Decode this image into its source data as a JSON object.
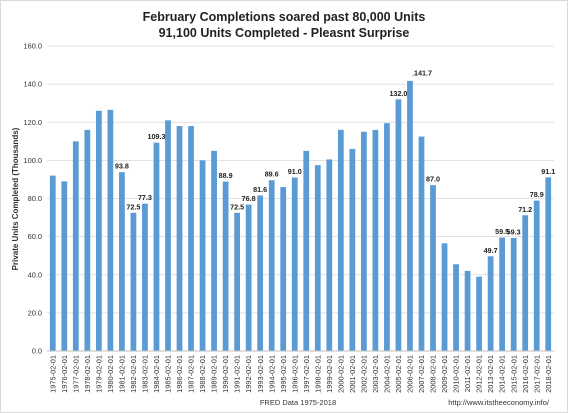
{
  "chart_data": {
    "type": "bar",
    "title_line1": "February Completions soared past 80,000 Units",
    "title_line2": "91,100 Units Completed - Pleasnt Surprise",
    "ylabel": "Private Units Completed (Thousands)",
    "xlabel": "FRED Data 1975-2018",
    "source_note": "http://www.itstheeconomy.info/",
    "ylim": [
      0,
      160
    ],
    "yticks": [
      "0.0",
      "20.0",
      "40.0",
      "60.0",
      "80.0",
      "100.0",
      "120.0",
      "140.0",
      "160.0"
    ],
    "grid": true,
    "bar_color": "#5b9bd5",
    "categories": [
      "1975-02-01",
      "1976-02-01",
      "1977-02-01",
      "1978-02-01",
      "1979-02-01",
      "1980-02-01",
      "1981-02-01",
      "1982-02-01",
      "1983-02-01",
      "1984-02-01",
      "1985-02-01",
      "1986-02-01",
      "1987-02-01",
      "1988-02-01",
      "1989-02-01",
      "1990-02-01",
      "1991-02-01",
      "1992-02-01",
      "1993-02-01",
      "1994-02-01",
      "1995-02-01",
      "1996-02-01",
      "1997-02-01",
      "1998-02-01",
      "1999-02-01",
      "2000-02-01",
      "2001-02-01",
      "2002-02-01",
      "2003-02-01",
      "2004-02-01",
      "2005-02-01",
      "2006-02-01",
      "2007-02-01",
      "2008-02-01",
      "2009-02-01",
      "2010-02-01",
      "2011-02-01",
      "2012-02-01",
      "2013-02-01",
      "2014-02-01",
      "2015-02-01",
      "2016-02-01",
      "2017-02-01",
      "2018-02-01"
    ],
    "values": [
      92,
      89,
      110,
      116,
      126,
      126.5,
      93.8,
      72.5,
      77.3,
      109.3,
      121,
      118,
      118,
      100,
      105,
      88.9,
      72.5,
      76.8,
      81.6,
      89.6,
      86,
      91.0,
      105,
      97.5,
      100.5,
      116,
      106,
      115,
      116,
      119.5,
      132.0,
      141.7,
      112.5,
      87.0,
      56.5,
      45.5,
      42,
      39,
      49.7,
      59.5,
      59.3,
      71.2,
      78.9,
      91.1
    ],
    "data_labels": [
      "",
      "",
      "",
      "",
      "",
      "",
      "93.8",
      "72.5",
      "77.3",
      "109.3",
      "",
      "",
      "",
      "",
      "",
      "88.9",
      "72.5",
      "76.8",
      "81.6",
      "89.6",
      "",
      "91.0",
      "",
      "",
      "",
      "",
      "",
      "",
      "",
      "",
      "132.0",
      "141.7",
      "",
      "87.0",
      "",
      "",
      "",
      "",
      "49.7",
      "59.5",
      "59.3",
      "71.2",
      "78.9",
      "91.1"
    ]
  }
}
